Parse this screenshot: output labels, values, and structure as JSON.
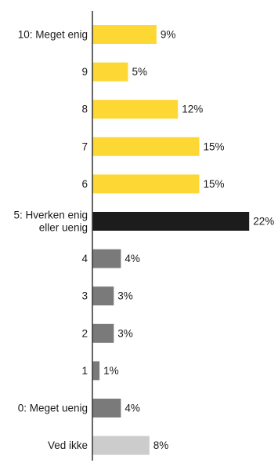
{
  "chart_data": {
    "type": "bar",
    "orientation": "horizontal",
    "title": "",
    "xlabel": "",
    "ylabel": "",
    "xlim": [
      0,
      22
    ],
    "grid": false,
    "legend": "none",
    "value_format": "percent",
    "categories": [
      "10: Meget enig",
      "9",
      "8",
      "7",
      "6",
      "5: Hverken enig eller uenig",
      "4",
      "3",
      "2",
      "1",
      "0: Meget uenig",
      "Ved ikke"
    ],
    "category_lines": [
      [
        "10: Meget enig"
      ],
      [
        "9"
      ],
      [
        "8"
      ],
      [
        "7"
      ],
      [
        "6"
      ],
      [
        "5: Hverken enig",
        "eller uenig"
      ],
      [
        "4"
      ],
      [
        "3"
      ],
      [
        "2"
      ],
      [
        "1"
      ],
      [
        "0: Meget uenig"
      ],
      [
        "Ved ikke"
      ]
    ],
    "values": [
      9,
      5,
      12,
      15,
      15,
      22,
      4,
      3,
      3,
      1,
      4,
      8
    ],
    "value_labels": [
      "9%",
      "5%",
      "12%",
      "15%",
      "15%",
      "22%",
      "4%",
      "3%",
      "3%",
      "1%",
      "4%",
      "8%"
    ],
    "bar_colors": [
      "#FDD835",
      "#FDD835",
      "#FDD835",
      "#FDD835",
      "#FDD835",
      "#1C1C1C",
      "#7A7A7A",
      "#7A7A7A",
      "#7A7A7A",
      "#7A7A7A",
      "#7A7A7A",
      "#CCCCCC"
    ],
    "axis_color": "#333333"
  }
}
